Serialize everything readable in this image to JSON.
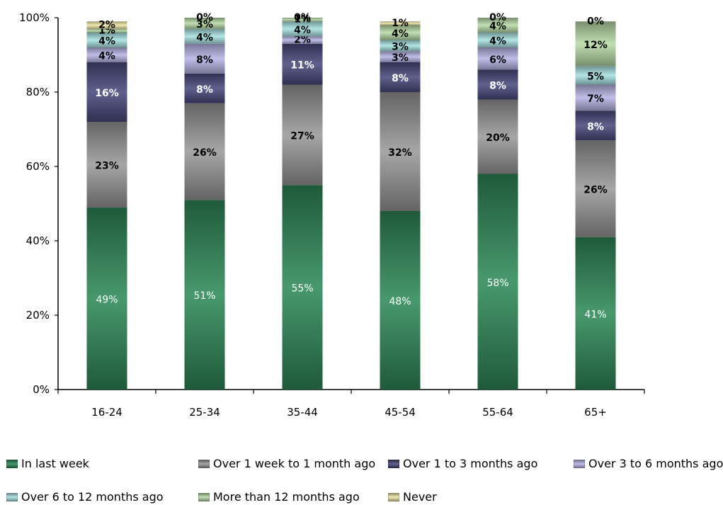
{
  "chart_data": {
    "type": "bar",
    "stacked": true,
    "percent": true,
    "title": "",
    "xlabel": "",
    "ylabel": "",
    "ylim": [
      0,
      100
    ],
    "yticks": [
      "0%",
      "20%",
      "40%",
      "60%",
      "80%",
      "100%"
    ],
    "categories": [
      "16-24",
      "25-34",
      "35-44",
      "45-54",
      "55-64",
      "65+"
    ],
    "legend_position": "bottom",
    "series": [
      {
        "name": "In last week",
        "color": "#2f8a59",
        "label_color": "#ffffff",
        "values": [
          49,
          51,
          55,
          48,
          58,
          41
        ]
      },
      {
        "name": "Over 1 week to 1 month ago",
        "color": "#9a9a9a",
        "label_color": "#000000",
        "values": [
          23,
          26,
          27,
          32,
          20,
          26
        ]
      },
      {
        "name": "Over 1 to 3 months ago",
        "color": "#4a4a7e",
        "label_color": "#ffffff",
        "values": [
          16,
          8,
          11,
          8,
          8,
          8
        ]
      },
      {
        "name": "Over 3 to 6 months ago",
        "color": "#b9b5e6",
        "label_color": "#000000",
        "values": [
          4,
          8,
          2,
          3,
          6,
          7
        ]
      },
      {
        "name": "Over 6 to 12 months ago",
        "color": "#a9e2e2",
        "label_color": "#000000",
        "values": [
          4,
          4,
          4,
          3,
          4,
          5
        ]
      },
      {
        "name": "More than 12 months ago",
        "color": "#b8dba8",
        "label_color": "#000000",
        "values": [
          1,
          3,
          1,
          4,
          4,
          12
        ]
      },
      {
        "name": "Never",
        "color": "#efe6a8",
        "label_color": "#000000",
        "values": [
          2,
          0,
          0,
          1,
          0,
          0
        ]
      }
    ]
  }
}
